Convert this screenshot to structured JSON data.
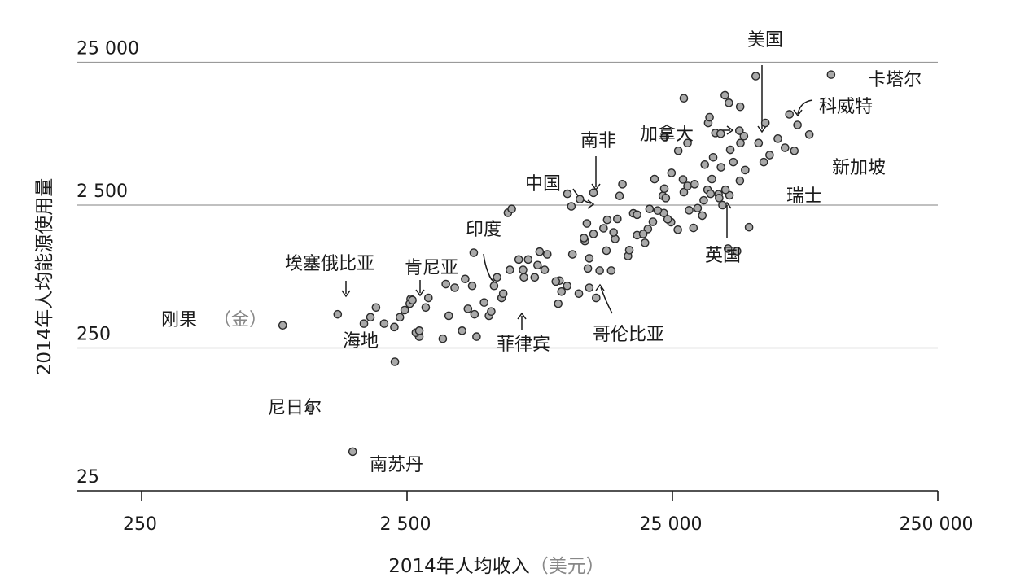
{
  "chart_data": {
    "type": "scatter",
    "xlabel": "2014年人均收入",
    "xlabel_unit": "（美元）",
    "ylabel": "2014年人均能源使用量",
    "x_scale": "log",
    "y_scale": "log",
    "xlim": [
      180,
      250000
    ],
    "ylim": [
      25,
      25000
    ],
    "x_ticks": [
      {
        "value": 250,
        "label": "250"
      },
      {
        "value": 2500,
        "label": "2 500"
      },
      {
        "value": 25000,
        "label": "25 000"
      },
      {
        "value": 250000,
        "label": "250 000"
      }
    ],
    "y_ticks": [
      {
        "value": 25,
        "label": "25"
      },
      {
        "value": 250,
        "label": "250"
      },
      {
        "value": 2500,
        "label": "2 500"
      },
      {
        "value": 25000,
        "label": "25 000"
      }
    ],
    "grid": "horizontal",
    "points": [
      [
        850,
        360
      ],
      [
        1080,
        95
      ],
      [
        1560,
        47
      ],
      [
        1370,
        430
      ],
      [
        1720,
        370
      ],
      [
        1820,
        410
      ],
      [
        1910,
        480
      ],
      [
        2240,
        350
      ],
      [
        2350,
        410
      ],
      [
        2580,
        550
      ],
      [
        2780,
        300
      ],
      [
        2250,
        200
      ],
      [
        2700,
        320
      ],
      [
        2780,
        330
      ],
      [
        2940,
        480
      ],
      [
        3410,
        290
      ],
      [
        3590,
        420
      ],
      [
        4030,
        330
      ],
      [
        4490,
        430
      ],
      [
        4570,
        300
      ],
      [
        4240,
        470
      ],
      [
        4880,
        520
      ],
      [
        5090,
        420
      ],
      [
        5680,
        560
      ],
      [
        5760,
        600
      ],
      [
        6890,
        780
      ],
      [
        7760,
        950
      ],
      [
        9380,
        740
      ],
      [
        10030,
        680
      ],
      [
        12150,
        660
      ],
      [
        12900,
        560
      ],
      [
        15800,
        2900
      ],
      [
        14100,
        1200
      ],
      [
        17000,
        1100
      ],
      [
        20200,
        1700
      ],
      [
        23200,
        2200
      ],
      [
        24700,
        1900
      ],
      [
        24800,
        4200
      ],
      [
        28900,
        2300
      ],
      [
        30300,
        3500
      ],
      [
        32800,
        2700
      ],
      [
        33900,
        3200
      ],
      [
        35200,
        3800
      ],
      [
        38600,
        2500
      ],
      [
        42400,
        5000
      ],
      [
        46500,
        7600
      ],
      [
        45100,
        6800
      ],
      [
        52800,
        6800
      ],
      [
        55200,
        5000
      ],
      [
        62400,
        7300
      ],
      [
        2450,
        460
      ],
      [
        2560,
        510
      ],
      [
        4460,
        1160
      ],
      [
        6000,
        2210
      ],
      [
        7150,
        1040
      ],
      [
        10500,
        1130
      ],
      [
        11900,
        1860
      ],
      [
        15200,
        1450
      ],
      [
        17200,
        1210
      ],
      [
        18400,
        1540
      ],
      [
        19400,
        1570
      ],
      [
        21100,
        1910
      ],
      [
        24000,
        1990
      ],
      [
        27400,
        3780
      ],
      [
        34800,
        3000
      ],
      [
        41000,
        2930
      ],
      [
        48600,
        1750
      ],
      [
        5190,
        450
      ],
      [
        3780,
        660
      ],
      [
        8440,
        1130
      ],
      [
        9090,
        730
      ],
      [
        14700,
        870
      ],
      [
        19700,
        1360
      ],
      [
        22000,
        2290
      ],
      [
        23000,
        2900
      ],
      [
        27600,
        3080
      ],
      [
        30000,
        1730
      ],
      [
        33100,
        4800
      ],
      [
        37300,
        2980
      ],
      [
        40500,
        1240
      ],
      [
        43800,
        1190
      ],
      [
        5320,
        680
      ],
      [
        6840,
        880
      ],
      [
        8250,
        880
      ],
      [
        9280,
        510
      ],
      [
        11100,
        600
      ],
      [
        13300,
        870
      ],
      [
        16200,
        3500
      ],
      [
        23600,
        2800
      ],
      [
        26300,
        6000
      ],
      [
        38100,
        4600
      ],
      [
        44700,
        8300
      ],
      [
        2050,
        370
      ],
      [
        3010,
        560
      ],
      [
        4140,
        760
      ],
      [
        5460,
        780
      ],
      [
        6100,
        880
      ],
      [
        7570,
        780
      ],
      [
        9550,
        620
      ],
      [
        12150,
        1060
      ],
      [
        13750,
        1720
      ],
      [
        17800,
        2190
      ],
      [
        23300,
        3260
      ],
      [
        28500,
        3400
      ],
      [
        34100,
        9400
      ],
      [
        36300,
        8000
      ],
      [
        39600,
        3200
      ],
      [
        58100,
        5600
      ],
      [
        66400,
        6300
      ],
      [
        35600,
        5400
      ],
      [
        26200,
        1680
      ],
      [
        18400,
        2140
      ],
      [
        14200,
        1970
      ],
      [
        11700,
        1400
      ],
      [
        12600,
        1570
      ],
      [
        12000,
        900
      ],
      [
        20500,
        2350
      ],
      [
        15000,
        1610
      ],
      [
        31100,
        2380
      ],
      [
        32400,
        2110
      ],
      [
        28500,
        6800
      ],
      [
        34500,
        10300
      ],
      [
        41300,
        6100
      ],
      [
        45000,
        12200
      ],
      [
        40800,
        13000
      ],
      [
        51500,
        20000
      ],
      [
        69000,
        10800
      ],
      [
        99000,
        20500
      ],
      [
        12600,
        3050
      ],
      [
        3500,
        700
      ],
      [
        4400,
        680
      ],
      [
        7900,
        1180
      ],
      [
        10400,
        2450
      ],
      [
        27600,
        14000
      ],
      [
        39400,
        14700
      ],
      [
        10050,
        3000
      ],
      [
        6590,
        1040
      ],
      [
        11600,
        1470
      ],
      [
        6200,
        2350
      ],
      [
        82000,
        7800
      ],
      [
        56000,
        9400
      ],
      [
        74000,
        9100
      ],
      [
        47000,
        4400
      ],
      [
        72000,
        6000
      ],
      [
        11200,
        2750
      ],
      [
        2620,
        540
      ],
      [
        23400,
        7500
      ],
      [
        21400,
        3800
      ],
      [
        38000,
        7900
      ],
      [
        44900,
        3700
      ],
      [
        37500,
        2800
      ],
      [
        15500,
        2000
      ]
    ],
    "labels": [
      {
        "text": "美国"
      },
      {
        "text": "卡塔尔"
      },
      {
        "text": "科威特"
      },
      {
        "text": "加拿大"
      },
      {
        "text": "南非"
      },
      {
        "text": "新加坡"
      },
      {
        "text": "中国"
      },
      {
        "text": "瑞士"
      },
      {
        "text": "英国"
      },
      {
        "text": "印度"
      },
      {
        "text": "埃塞俄比亚"
      },
      {
        "text": "肯尼亚"
      },
      {
        "text": "刚果"
      },
      {
        "text": "（金）"
      },
      {
        "text": "海地"
      },
      {
        "text": "菲律宾"
      },
      {
        "text": "哥伦比亚"
      },
      {
        "text": "尼日尔"
      },
      {
        "text": "南苏丹"
      }
    ]
  }
}
